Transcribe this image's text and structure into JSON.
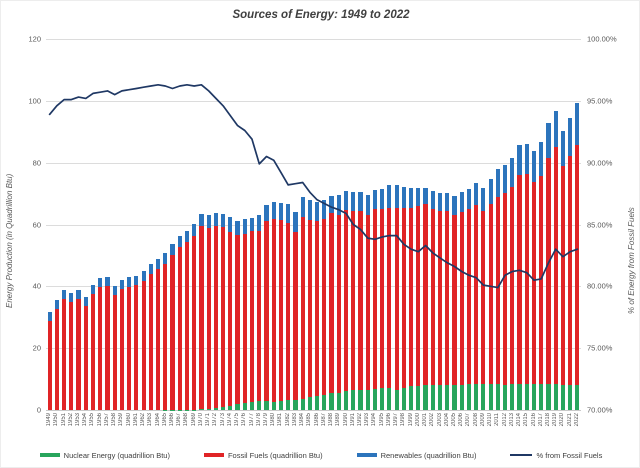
{
  "title": "Sources of Energy: 1949 to 2022",
  "left_axis": {
    "title": "Energy Production (in Quadrillion Btu)",
    "ticks": [
      "0",
      "20",
      "40",
      "60",
      "80",
      "100",
      "120"
    ],
    "min": 0,
    "max": 120
  },
  "right_axis": {
    "title": "% of Energy from Fossil Fuels",
    "ticks": [
      "70.00%",
      "75.00%",
      "80.00%",
      "85.00%",
      "90.00%",
      "95.00%",
      "100.00%"
    ],
    "min": 70,
    "max": 100
  },
  "colors": {
    "nuclear": "#28a55c",
    "fossil": "#e02426",
    "renewables": "#2c74bc",
    "line": "#1f3864",
    "grid": "#dcdcdc",
    "text": "#595959",
    "title_text": "#404040"
  },
  "legend": [
    {
      "key": "nuclear",
      "label": "Nuclear Energy (quadrillion Btu)",
      "type": "bar"
    },
    {
      "key": "fossil",
      "label": "Fossil Fuels (quadrillion Btu)",
      "type": "bar"
    },
    {
      "key": "renewables",
      "label": "Renewables (quadrillion Btu)",
      "type": "bar"
    },
    {
      "key": "line",
      "label": "% from Fossil Fuels",
      "type": "line"
    }
  ],
  "chart_data": {
    "type": "bar",
    "subtype": "stacked-bars-with-line",
    "title": "Sources of Energy: 1949 to 2022",
    "xlabel": "",
    "ylabel_left": "Energy Production (in Quadrillion Btu)",
    "ylabel_right": "% of Energy from Fossil Fuels",
    "left_ylim": [
      0,
      120
    ],
    "right_ylim": [
      70,
      100
    ],
    "grid": true,
    "legend_position": "bottom",
    "categories": [
      1949,
      1950,
      1951,
      1952,
      1953,
      1954,
      1955,
      1956,
      1957,
      1958,
      1959,
      1960,
      1961,
      1962,
      1963,
      1964,
      1965,
      1966,
      1967,
      1968,
      1969,
      1970,
      1971,
      1972,
      1973,
      1974,
      1975,
      1976,
      1977,
      1978,
      1979,
      1980,
      1981,
      1982,
      1983,
      1984,
      1985,
      1986,
      1987,
      1988,
      1989,
      1990,
      1991,
      1992,
      1993,
      1994,
      1995,
      1996,
      1997,
      1998,
      1999,
      2000,
      2001,
      2002,
      2003,
      2004,
      2005,
      2006,
      2007,
      2008,
      2009,
      2010,
      2011,
      2012,
      2013,
      2014,
      2015,
      2016,
      2017,
      2018,
      2019,
      2020,
      2021,
      2022
    ],
    "series": [
      {
        "name": "Nuclear Energy (quadrillion Btu)",
        "type": "bar",
        "stack": 1,
        "axis": "left",
        "color_key": "nuclear",
        "values": [
          0,
          0,
          0,
          0,
          0,
          0,
          0,
          0,
          0,
          0,
          0,
          0,
          0,
          0,
          0,
          0,
          0.04,
          0.06,
          0.09,
          0.14,
          0.15,
          0.24,
          0.41,
          0.58,
          0.91,
          1.27,
          1.9,
          2.11,
          2.7,
          3.02,
          2.78,
          2.74,
          3.01,
          3.13,
          3.2,
          3.55,
          4.08,
          4.38,
          4.75,
          5.59,
          5.6,
          6.1,
          6.42,
          6.48,
          6.41,
          6.69,
          7.08,
          7.09,
          6.6,
          7.07,
          7.61,
          7.86,
          8.03,
          8.15,
          7.96,
          8.22,
          8.16,
          8.21,
          8.46,
          8.43,
          8.36,
          8.43,
          8.27,
          8.06,
          8.27,
          8.34,
          8.34,
          8.43,
          8.42,
          8.44,
          8.45,
          8.25,
          8.13,
          8.06
        ]
      },
      {
        "name": "Fossil Fuels (quadrillion Btu)",
        "type": "bar",
        "stack": 2,
        "axis": "left",
        "color_key": "fossil",
        "values": [
          28.7,
          32.6,
          35.8,
          34.8,
          35.9,
          33.8,
          37.4,
          39.7,
          40.1,
          37.2,
          39.0,
          39.9,
          40.3,
          41.8,
          44.0,
          45.7,
          47.2,
          50.0,
          52.6,
          54.3,
          56.3,
          59.2,
          58.4,
          58.9,
          58.2,
          56.3,
          54.7,
          54.8,
          55.1,
          55.0,
          58.2,
          59.0,
          58.5,
          57.5,
          54.4,
          58.8,
          57.5,
          56.6,
          57.2,
          58.0,
          57.5,
          58.6,
          57.9,
          58.0,
          56.7,
          58.2,
          57.8,
          58.4,
          58.9,
          58.4,
          57.7,
          58.0,
          58.5,
          56.8,
          56.3,
          56.0,
          55.0,
          55.8,
          56.5,
          57.9,
          56.0,
          58.2,
          60.5,
          62.2,
          63.9,
          67.7,
          68.0,
          65.3,
          67.4,
          73.0,
          76.7,
          70.6,
          73.9,
          77.7
        ]
      },
      {
        "name": "Renewables (quadrillion Btu)",
        "type": "bar",
        "stack": 3,
        "axis": "left",
        "color_key": "renewables",
        "values": [
          3.0,
          3.0,
          3.0,
          2.9,
          2.9,
          2.8,
          2.9,
          3.0,
          3.0,
          3.0,
          3.1,
          3.1,
          3.1,
          3.2,
          3.2,
          3.3,
          3.4,
          3.5,
          3.5,
          3.6,
          3.7,
          4.1,
          4.3,
          4.4,
          4.4,
          4.8,
          4.7,
          4.8,
          4.2,
          5.0,
          5.2,
          5.5,
          5.5,
          6.0,
          6.4,
          6.5,
          6.2,
          6.2,
          5.9,
          5.7,
          6.3,
          6.2,
          6.2,
          6.1,
          6.3,
          6.3,
          6.7,
          7.2,
          7.2,
          6.6,
          6.6,
          6.1,
          5.3,
          5.8,
          6.1,
          6.1,
          6.2,
          6.6,
          6.6,
          7.2,
          7.6,
          8.1,
          9.2,
          9.0,
          9.3,
          9.7,
          9.7,
          10.2,
          10.8,
          11.3,
          11.5,
          11.5,
          12.3,
          13.4
        ]
      },
      {
        "name": "% from Fossil Fuels",
        "type": "line",
        "axis": "right",
        "color_key": "line",
        "values": [
          93.9,
          94.6,
          95.1,
          95.1,
          95.3,
          95.2,
          95.6,
          95.7,
          95.8,
          95.5,
          95.8,
          95.9,
          96.0,
          96.1,
          96.2,
          96.3,
          96.2,
          96.0,
          96.2,
          96.3,
          96.2,
          96.3,
          95.8,
          95.2,
          94.6,
          93.8,
          93.0,
          92.6,
          91.9,
          89.9,
          90.5,
          90.2,
          89.2,
          88.2,
          88.3,
          88.4,
          87.6,
          87.0,
          86.7,
          86.4,
          86.2,
          85.9,
          85.0,
          84.6,
          83.9,
          83.8,
          84.0,
          84.1,
          84.1,
          83.4,
          83.0,
          82.8,
          83.3,
          82.7,
          82.3,
          81.9,
          81.6,
          81.2,
          80.9,
          80.7,
          80.1,
          80.0,
          79.9,
          80.9,
          81.2,
          81.3,
          81.1,
          80.5,
          80.6,
          81.9,
          83.0,
          82.4,
          82.8,
          83.0
        ]
      }
    ]
  }
}
